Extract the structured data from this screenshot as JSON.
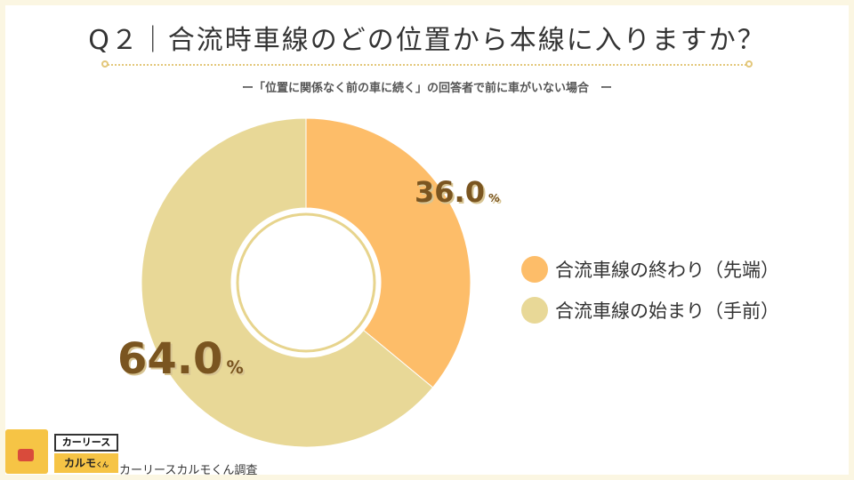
{
  "header": {
    "title": "Q２｜合流時車線のどの位置から本線に入りますか？",
    "subtitle": "ー「位置に関係なく前の車に続く」の回答者で前に車がいない場合　ー"
  },
  "chart_data": {
    "type": "pie",
    "donut": true,
    "categories": [
      "合流車線の終わり（先端）",
      "合流車線の始まり（手前）"
    ],
    "values": [
      36.0,
      64.0
    ],
    "value_labels": [
      "36.0",
      "64.0"
    ],
    "unit": "%",
    "colors": [
      "#fdbd69",
      "#e8d897"
    ],
    "legend_position": "right"
  },
  "footer": {
    "logo_line1": "カーリース",
    "logo_line2": "カルモ",
    "logo_line2_suffix": "くん",
    "credit": "カーリースカルモくん調査"
  }
}
